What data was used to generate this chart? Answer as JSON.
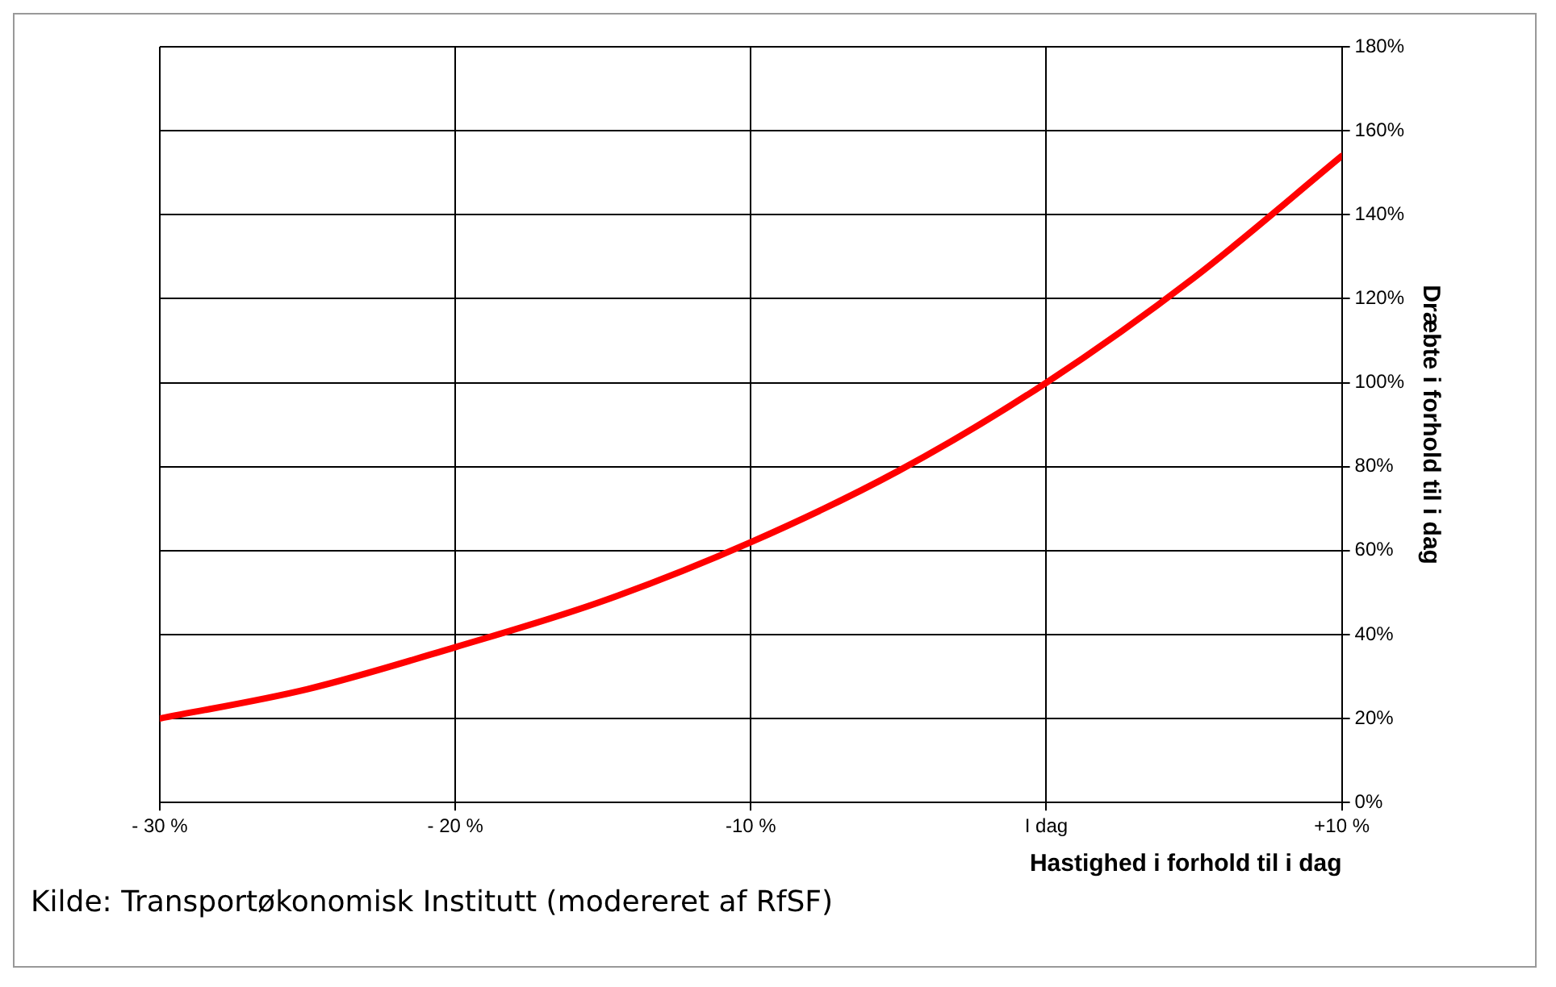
{
  "chart_data": {
    "type": "line",
    "xlabel": "Hastighed i forhold til i dag",
    "ylabel": "Dræbte i forhold til i dag",
    "x": [
      -30,
      -25,
      -20,
      -15,
      -10,
      -5,
      0,
      5,
      10
    ],
    "series": [
      {
        "color": "#ff0000",
        "values": [
          20,
          27,
          37,
          48,
          62,
          79,
          100,
          125,
          154
        ]
      }
    ],
    "xlim": [
      -30,
      10
    ],
    "xticks": [
      {
        "value": -30,
        "label": "- 30 %"
      },
      {
        "value": -20,
        "label": "- 20 %"
      },
      {
        "value": -10,
        "label": "-10 %"
      },
      {
        "value": 0,
        "label": "I dag"
      },
      {
        "value": 10,
        "label": "+10 %"
      }
    ],
    "ylim": [
      0,
      180
    ],
    "yticks": [
      {
        "value": 0,
        "label": "0%"
      },
      {
        "value": 20,
        "label": "20%"
      },
      {
        "value": 40,
        "label": "40%"
      },
      {
        "value": 60,
        "label": "60%"
      },
      {
        "value": 80,
        "label": "80%"
      },
      {
        "value": 100,
        "label": "100%"
      },
      {
        "value": 120,
        "label": "120%"
      },
      {
        "value": 140,
        "label": "140%"
      },
      {
        "value": 160,
        "label": "160%"
      },
      {
        "value": 180,
        "label": "180%"
      }
    ],
    "grid": true,
    "legend": false,
    "marker": "none",
    "line_style": "solid",
    "annotations": [
      "Kilde: Transportøkonomisk Institutt (modereret af RfSF)"
    ]
  }
}
